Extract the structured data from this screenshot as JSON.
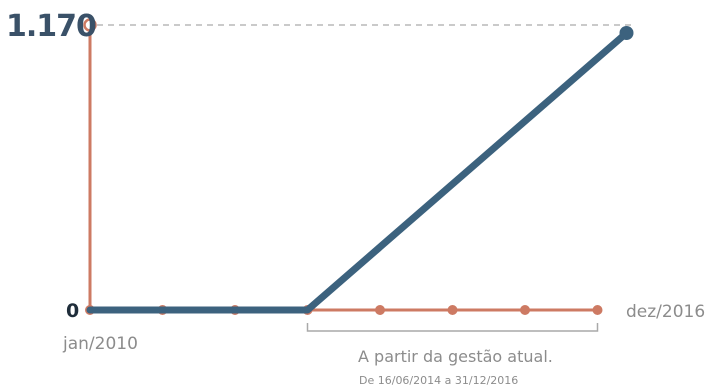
{
  "chart_data": {
    "type": "line",
    "x_start_label": "jan/2010",
    "x_end_label": "dez/2016",
    "y_max_label": "1.170",
    "y_zero_label": "0",
    "ylim": [
      0,
      1170
    ],
    "x_ticks": 8,
    "grid": false,
    "series": [
      {
        "values": [
          {
            "x": 0,
            "y": 0
          },
          {
            "x": 3,
            "y": 0
          },
          {
            "x": 7.4,
            "y": 1170
          }
        ]
      }
    ],
    "annotation": {
      "text": "A partir da gestão atual.",
      "subtext": "De 16/06/2014 a 31/12/2016",
      "x_from": 3,
      "x_to": 7
    }
  },
  "colors": {
    "axis": "#cd7a63",
    "series": "#3c627e",
    "max_label": "#3a5168",
    "zero_label": "#1f2d3a",
    "gray_text": "#8c8c8c",
    "dashed": "#b9b9b9",
    "bracket": "#a9a9a9"
  }
}
